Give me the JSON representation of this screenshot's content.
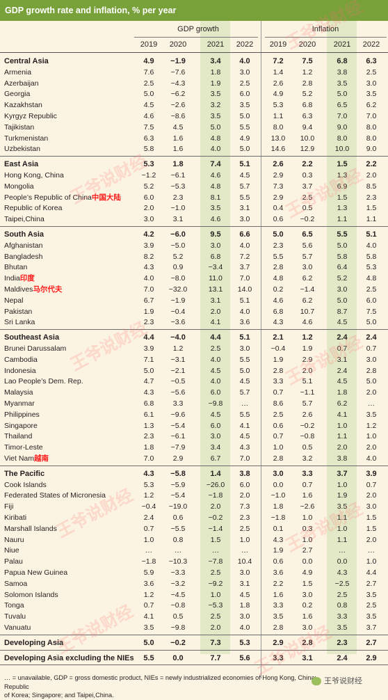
{
  "title": "GDP growth rate and inflation, % per year",
  "groups": {
    "gdp": "GDP growth",
    "inflation": "Inflation"
  },
  "years": [
    "2019",
    "2020",
    "2021",
    "2022",
    "2019",
    "2020",
    "2021",
    "2022"
  ],
  "sections": [
    {
      "name": "Central Asia",
      "values": [
        "4.9",
        "−1.9",
        "3.4",
        "4.0",
        "7.2",
        "7.5",
        "6.8",
        "6.3"
      ],
      "rows": [
        {
          "name": "Armenia",
          "values": [
            "7.6",
            "−7.6",
            "1.8",
            "3.0",
            "1.4",
            "1.2",
            "3.8",
            "2.5"
          ]
        },
        {
          "name": "Azerbaijan",
          "values": [
            "2.5",
            "−4.3",
            "1.9",
            "2.5",
            "2.6",
            "2.8",
            "3.5",
            "3.0"
          ]
        },
        {
          "name": "Georgia",
          "values": [
            "5.0",
            "−6.2",
            "3.5",
            "6.0",
            "4.9",
            "5.2",
            "5.0",
            "3.5"
          ]
        },
        {
          "name": "Kazakhstan",
          "values": [
            "4.5",
            "−2.6",
            "3.2",
            "3.5",
            "5.3",
            "6.8",
            "6.5",
            "6.2"
          ]
        },
        {
          "name": "Kyrgyz Republic",
          "values": [
            "4.6",
            "−8.6",
            "3.5",
            "5.0",
            "1.1",
            "6.3",
            "7.0",
            "7.0"
          ]
        },
        {
          "name": "Tajikistan",
          "values": [
            "7.5",
            "4.5",
            "5.0",
            "5.5",
            "8.0",
            "9.4",
            "9.0",
            "8.0"
          ]
        },
        {
          "name": "Turkmenistan",
          "values": [
            "6.3",
            "1.6",
            "4.8",
            "4.9",
            "13.0",
            "10.0",
            "8.0",
            "8.0"
          ]
        },
        {
          "name": "Uzbekistan",
          "values": [
            "5.8",
            "1.6",
            "4.0",
            "5.0",
            "14.6",
            "12.9",
            "10.0",
            "9.0"
          ]
        }
      ]
    },
    {
      "name": "East Asia",
      "values": [
        "5.3",
        "1.8",
        "7.4",
        "5.1",
        "2.6",
        "2.2",
        "1.5",
        "2.2"
      ],
      "rows": [
        {
          "name": "Hong Kong, China",
          "values": [
            "−1.2",
            "−6.1",
            "4.6",
            "4.5",
            "2.9",
            "0.3",
            "1.3",
            "2.0"
          ]
        },
        {
          "name": "Mongolia",
          "values": [
            "5.2",
            "−5.3",
            "4.8",
            "5.7",
            "7.3",
            "3.7",
            "6.9",
            "8.5"
          ]
        },
        {
          "name": "People’s Republic of China",
          "note": "中国大陆",
          "values": [
            "6.0",
            "2.3",
            "8.1",
            "5.5",
            "2.9",
            "2.5",
            "1.5",
            "2.3"
          ]
        },
        {
          "name": "Republic of Korea",
          "values": [
            "2.0",
            "−1.0",
            "3.5",
            "3.1",
            "0.4",
            "0.5",
            "1.3",
            "1.5"
          ]
        },
        {
          "name": "Taipei,China",
          "values": [
            "3.0",
            "3.1",
            "4.6",
            "3.0",
            "0.6",
            "−0.2",
            "1.1",
            "1.1"
          ]
        }
      ]
    },
    {
      "name": "South Asia",
      "values": [
        "4.2",
        "−6.0",
        "9.5",
        "6.6",
        "5.0",
        "6.5",
        "5.5",
        "5.1"
      ],
      "rows": [
        {
          "name": "Afghanistan",
          "values": [
            "3.9",
            "−5.0",
            "3.0",
            "4.0",
            "2.3",
            "5.6",
            "5.0",
            "4.0"
          ]
        },
        {
          "name": "Bangladesh",
          "values": [
            "8.2",
            "5.2",
            "6.8",
            "7.2",
            "5.5",
            "5.7",
            "5.8",
            "5.8"
          ]
        },
        {
          "name": "Bhutan",
          "values": [
            "4.3",
            "0.9",
            "−3.4",
            "3.7",
            "2.8",
            "3.0",
            "6.4",
            "5.3"
          ]
        },
        {
          "name": "India",
          "note": "印度",
          "values": [
            "4.0",
            "−8.0",
            "11.0",
            "7.0",
            "4.8",
            "6.2",
            "5.2",
            "4.8"
          ]
        },
        {
          "name": "Maldives",
          "note": "马尔代夫",
          "values": [
            "7.0",
            "−32.0",
            "13.1",
            "14.0",
            "0.2",
            "−1.4",
            "3.0",
            "2.5"
          ]
        },
        {
          "name": "Nepal",
          "values": [
            "6.7",
            "−1.9",
            "3.1",
            "5.1",
            "4.6",
            "6.2",
            "5.0",
            "6.0"
          ]
        },
        {
          "name": "Pakistan",
          "values": [
            "1.9",
            "−0.4",
            "2.0",
            "4.0",
            "6.8",
            "10.7",
            "8.7",
            "7.5"
          ]
        },
        {
          "name": "Sri Lanka",
          "values": [
            "2.3",
            "−3.6",
            "4.1",
            "3.6",
            "4.3",
            "4.6",
            "4.5",
            "5.0"
          ]
        }
      ]
    },
    {
      "name": "Southeast Asia",
      "values": [
        "4.4",
        "−4.0",
        "4.4",
        "5.1",
        "2.1",
        "1.2",
        "2.4",
        "2.4"
      ],
      "rows": [
        {
          "name": "Brunei Darussalam",
          "values": [
            "3.9",
            "1.2",
            "2.5",
            "3.0",
            "−0.4",
            "1.9",
            "0.7",
            "0.7"
          ]
        },
        {
          "name": "Cambodia",
          "values": [
            "7.1",
            "−3.1",
            "4.0",
            "5.5",
            "1.9",
            "2.9",
            "3.1",
            "3.0"
          ]
        },
        {
          "name": "Indonesia",
          "values": [
            "5.0",
            "−2.1",
            "4.5",
            "5.0",
            "2.8",
            "2.0",
            "2.4",
            "2.8"
          ]
        },
        {
          "name": "Lao People’s Dem. Rep.",
          "values": [
            "4.7",
            "−0.5",
            "4.0",
            "4.5",
            "3.3",
            "5.1",
            "4.5",
            "5.0"
          ]
        },
        {
          "name": "Malaysia",
          "values": [
            "4.3",
            "−5.6",
            "6.0",
            "5.7",
            "0.7",
            "−1.1",
            "1.8",
            "2.0"
          ]
        },
        {
          "name": "Myanmar",
          "values": [
            "6.8",
            "3.3",
            "−9.8",
            "…",
            "8.6",
            "5.7",
            "6.2",
            "…"
          ]
        },
        {
          "name": "Philippines",
          "values": [
            "6.1",
            "−9.6",
            "4.5",
            "5.5",
            "2.5",
            "2.6",
            "4.1",
            "3.5"
          ]
        },
        {
          "name": "Singapore",
          "values": [
            "1.3",
            "−5.4",
            "6.0",
            "4.1",
            "0.6",
            "−0.2",
            "1.0",
            "1.2"
          ]
        },
        {
          "name": "Thailand",
          "values": [
            "2.3",
            "−6.1",
            "3.0",
            "4.5",
            "0.7",
            "−0.8",
            "1.1",
            "1.0"
          ]
        },
        {
          "name": "Timor-Leste",
          "values": [
            "1.8",
            "−7.9",
            "3.4",
            "4.3",
            "1.0",
            "0.5",
            "2.0",
            "2.0"
          ]
        },
        {
          "name": "Viet Nam",
          "note": "越南",
          "values": [
            "7.0",
            "2.9",
            "6.7",
            "7.0",
            "2.8",
            "3.2",
            "3.8",
            "4.0"
          ]
        }
      ]
    },
    {
      "name": "The Pacific",
      "values": [
        "4.3",
        "−5.8",
        "1.4",
        "3.8",
        "3.0",
        "3.3",
        "3.7",
        "3.9"
      ],
      "rows": [
        {
          "name": "Cook Islands",
          "values": [
            "5.3",
            "−5.9",
            "−26.0",
            "6.0",
            "0.0",
            "0.7",
            "1.0",
            "0.7"
          ]
        },
        {
          "name": "Federated States of Micronesia",
          "values": [
            "1.2",
            "−5.4",
            "−1.8",
            "2.0",
            "−1.0",
            "1.6",
            "1.9",
            "2.0"
          ]
        },
        {
          "name": "Fiji",
          "values": [
            "−0.4",
            "−19.0",
            "2.0",
            "7.3",
            "1.8",
            "−2.6",
            "3.5",
            "3.0"
          ]
        },
        {
          "name": "Kiribati",
          "values": [
            "2.4",
            "0.6",
            "−0.2",
            "2.3",
            "−1.8",
            "1.0",
            "1.1",
            "1.5"
          ]
        },
        {
          "name": "Marshall Islands",
          "values": [
            "0.7",
            "−5.5",
            "−1.4",
            "2.5",
            "0.1",
            "0.3",
            "1.0",
            "1.5"
          ]
        },
        {
          "name": "Nauru",
          "values": [
            "1.0",
            "0.8",
            "1.5",
            "1.0",
            "4.3",
            "1.0",
            "1.1",
            "2.0"
          ]
        },
        {
          "name": "Niue",
          "values": [
            "…",
            "…",
            "…",
            "…",
            "1.9",
            "2.7",
            "…",
            "…"
          ]
        },
        {
          "name": "Palau",
          "values": [
            "−1.8",
            "−10.3",
            "−7.8",
            "10.4",
            "0.6",
            "0.0",
            "0.0",
            "1.0"
          ]
        },
        {
          "name": "Papua New Guinea",
          "values": [
            "5.9",
            "−3.3",
            "2.5",
            "3.0",
            "3.6",
            "4.9",
            "4.3",
            "4.4"
          ]
        },
        {
          "name": "Samoa",
          "values": [
            "3.6",
            "−3.2",
            "−9.2",
            "3.1",
            "2.2",
            "1.5",
            "−2.5",
            "2.7"
          ]
        },
        {
          "name": "Solomon Islands",
          "values": [
            "1.2",
            "−4.5",
            "1.0",
            "4.5",
            "1.6",
            "3.0",
            "2.5",
            "3.5"
          ]
        },
        {
          "name": "Tonga",
          "values": [
            "0.7",
            "−0.8",
            "−5.3",
            "1.8",
            "3.3",
            "0.2",
            "0.8",
            "2.5"
          ]
        },
        {
          "name": "Tuvalu",
          "values": [
            "4.1",
            "0.5",
            "2.5",
            "3.0",
            "3.5",
            "1.6",
            "3.3",
            "3.5"
          ]
        },
        {
          "name": "Vanuatu",
          "values": [
            "3.5",
            "−9.8",
            "2.0",
            "4.0",
            "2.8",
            "3.0",
            "3.5",
            "3.7"
          ]
        }
      ]
    }
  ],
  "totals": [
    {
      "name": "Developing Asia",
      "values": [
        "5.0",
        "−0.2",
        "7.3",
        "5.3",
        "2.9",
        "2.8",
        "2.3",
        "2.7"
      ]
    },
    {
      "name": "Developing Asia excluding the NIEs",
      "values": [
        "5.5",
        "0.0",
        "7.7",
        "5.6",
        "3.3",
        "3.1",
        "2.4",
        "2.9"
      ]
    }
  ],
  "footnote_line1": "… = unavailable, GDP = gross domestic product, NIEs = newly industrialized economies of Hong Kong, China; Republic",
  "footnote_line2": "of Korea; Singapore; and Taipei,China.",
  "watermark": "王爷说财经",
  "logo_text": "王爷说财经",
  "colors": {
    "title_bg": "#78a13a",
    "page_bg": "#fbf4e2",
    "highlight_col": "#e3e9c6",
    "annotation": "#ff1a1a"
  }
}
